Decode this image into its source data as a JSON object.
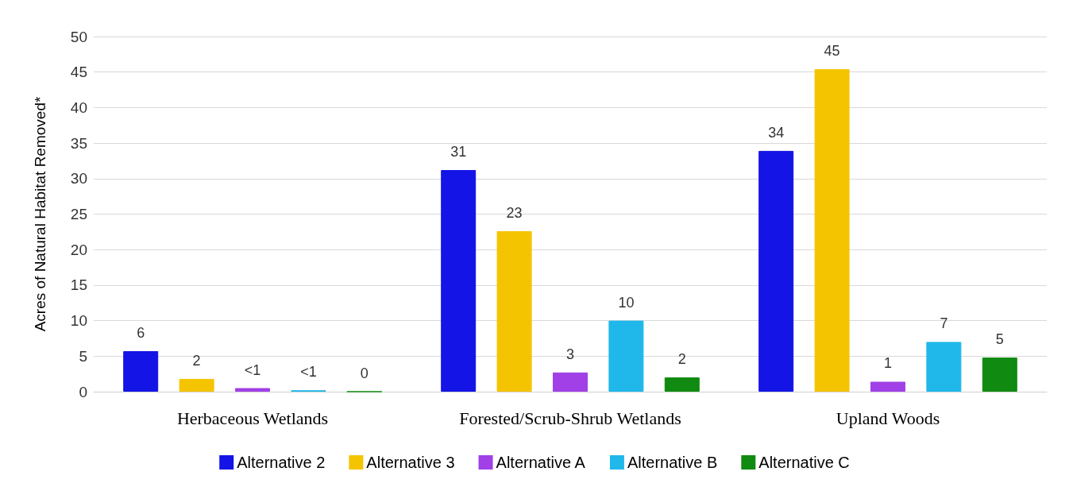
{
  "chart_data": {
    "type": "bar",
    "ylabel": "Acres of Natural Habitat Removed*",
    "categories": [
      "Herbaceous Wetlands",
      "Forested/Scrub-Shrub Wetlands",
      "Upland Woods"
    ],
    "series": [
      {
        "name": "Alternative 2",
        "color": "#1414e6",
        "values": [
          5.7,
          31.2,
          33.9
        ],
        "value_labels": [
          "6",
          "31",
          "34"
        ]
      },
      {
        "name": "Alternative 3",
        "color": "#f5c400",
        "values": [
          1.8,
          22.6,
          45.4
        ],
        "value_labels": [
          "2",
          "23",
          "45"
        ]
      },
      {
        "name": "Alternative A",
        "color": "#a040e6",
        "values": [
          0.5,
          2.7,
          1.4
        ],
        "value_labels": [
          "<1",
          "3",
          "1"
        ]
      },
      {
        "name": "Alternative B",
        "color": "#20b8ea",
        "values": [
          0.2,
          10,
          7
        ],
        "value_labels": [
          "<1",
          "10",
          "7"
        ]
      },
      {
        "name": "Alternative C",
        "color": "#108a10",
        "values": [
          0,
          2,
          4.8
        ],
        "value_labels": [
          "0",
          "2",
          "5"
        ]
      }
    ],
    "ylim": [
      0,
      50
    ],
    "yticks": [
      0,
      5,
      10,
      15,
      20,
      25,
      30,
      35,
      40,
      45,
      50
    ],
    "grid": "y",
    "legend": "bottom"
  }
}
